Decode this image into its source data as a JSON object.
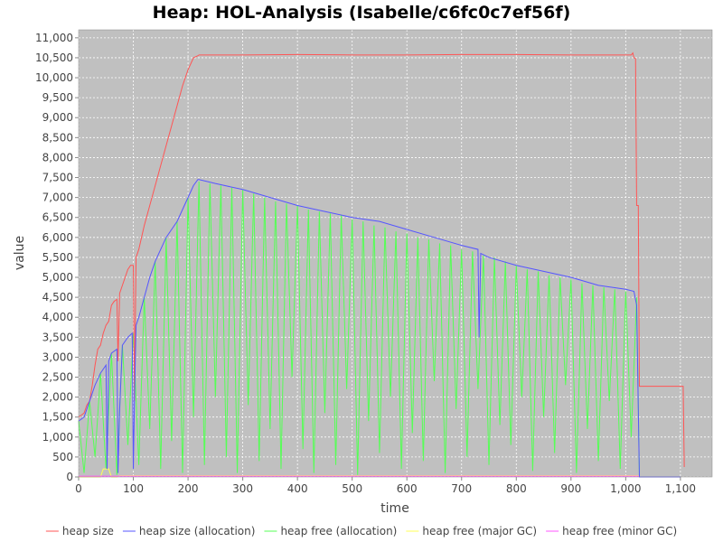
{
  "chart_data": {
    "type": "line",
    "title": "Heap: HOL-Analysis (Isabelle/c6fc0c7ef56f)",
    "x_label": "time",
    "y_label": "value",
    "xlim": [
      0,
      1158
    ],
    "ylim": [
      0,
      11200
    ],
    "xticks": [
      0,
      100,
      200,
      300,
      400,
      500,
      600,
      700,
      800,
      900,
      {
        "value": 1000,
        "label": "1,000"
      },
      {
        "value": 1100,
        "label": "1,100"
      }
    ],
    "yticks": [
      0,
      500,
      {
        "value": 1000,
        "label": "1,000"
      },
      {
        "value": 1500,
        "label": "1,500"
      },
      {
        "value": 2000,
        "label": "2,000"
      },
      {
        "value": 2500,
        "label": "2,500"
      },
      {
        "value": 3000,
        "label": "3,000"
      },
      {
        "value": 3500,
        "label": "3,500"
      },
      {
        "value": 4000,
        "label": "4,000"
      },
      {
        "value": 4500,
        "label": "4,500"
      },
      {
        "value": 5000,
        "label": "5,000"
      },
      {
        "value": 5500,
        "label": "5,500"
      },
      {
        "value": 6000,
        "label": "6,000"
      },
      {
        "value": 6500,
        "label": "6,500"
      },
      {
        "value": 7000,
        "label": "7,000"
      },
      {
        "value": 7500,
        "label": "7,500"
      },
      {
        "value": 8000,
        "label": "8,000"
      },
      {
        "value": 8500,
        "label": "8,500"
      },
      {
        "value": 9000,
        "label": "9,000"
      },
      {
        "value": 9500,
        "label": "9,500"
      },
      {
        "value": 10000,
        "label": "10,000"
      },
      {
        "value": 10500,
        "label": "10,500"
      },
      {
        "value": 11000,
        "label": "11,000"
      }
    ],
    "grid": true,
    "legend": "bottom",
    "series": [
      {
        "name": "heap free (allocation)",
        "color": "#55ff55",
        "x": [
          0,
          10,
          20,
          30,
          40,
          50,
          60,
          70,
          80,
          90,
          100,
          110,
          120,
          130,
          140,
          150,
          160,
          170,
          180,
          190,
          200,
          210,
          220,
          230,
          240,
          250,
          260,
          270,
          280,
          290,
          300,
          310,
          320,
          330,
          340,
          350,
          360,
          370,
          380,
          390,
          400,
          410,
          420,
          430,
          440,
          450,
          460,
          470,
          480,
          490,
          500,
          510,
          520,
          530,
          540,
          550,
          560,
          570,
          580,
          590,
          600,
          610,
          620,
          630,
          640,
          650,
          660,
          670,
          680,
          690,
          700,
          710,
          720,
          730,
          740,
          750,
          760,
          770,
          780,
          790,
          800,
          810,
          820,
          830,
          840,
          850,
          860,
          870,
          880,
          890,
          900,
          910,
          920,
          930,
          940,
          950,
          960,
          970,
          980,
          990,
          1000,
          1010,
          1020,
          1025
        ],
        "values": [
          1400,
          100,
          1900,
          500,
          2600,
          200,
          3100,
          50,
          3300,
          800,
          3600,
          300,
          4500,
          1200,
          5400,
          200,
          6000,
          900,
          6400,
          100,
          7000,
          1500,
          7400,
          300,
          7350,
          2000,
          7300,
          500,
          7250,
          100,
          7200,
          1800,
          7100,
          400,
          7000,
          1200,
          6900,
          200,
          6850,
          2500,
          6800,
          700,
          6700,
          100,
          6650,
          1600,
          6600,
          300,
          6550,
          2200,
          6450,
          50,
          6400,
          1400,
          6300,
          600,
          6250,
          2000,
          6150,
          200,
          6100,
          1100,
          6000,
          400,
          5950,
          2400,
          5850,
          100,
          5800,
          1700,
          5700,
          500,
          5650,
          2200,
          5550,
          300,
          5500,
          1300,
          5400,
          800,
          5300,
          2000,
          5200,
          150,
          5150,
          1500,
          5050,
          600,
          5000,
          2300,
          4950,
          100,
          4850,
          1200,
          4800,
          400,
          4750,
          1900,
          4700,
          200,
          4650,
          1000,
          4500,
          0
        ]
      },
      {
        "name": "heap free (major GC)",
        "color": "#ffff55",
        "x": [
          0,
          40,
          45,
          55,
          60,
          70,
          75,
          1025
        ],
        "values": [
          0,
          0,
          200,
          200,
          0,
          0,
          30,
          30
        ]
      },
      {
        "name": "heap free (minor GC)",
        "color": "#ff55ff",
        "x": [
          0,
          1025
        ],
        "values": [
          20,
          20
        ]
      },
      {
        "name": "heap size",
        "color": "#ff5555",
        "x": [
          0,
          5,
          10,
          15,
          20,
          25,
          30,
          35,
          40,
          45,
          50,
          55,
          60,
          65,
          70,
          72,
          75,
          80,
          85,
          90,
          95,
          100,
          102,
          105,
          110,
          120,
          130,
          140,
          150,
          160,
          170,
          180,
          190,
          200,
          210,
          218,
          220,
          300,
          400,
          500,
          600,
          700,
          800,
          900,
          1010,
          1013,
          1015,
          1018,
          1020,
          1023,
          1025,
          1105,
          1107
        ],
        "values": [
          1500,
          1550,
          1600,
          1800,
          1900,
          2300,
          2800,
          3200,
          3300,
          3600,
          3800,
          3900,
          4300,
          4400,
          4450,
          2900,
          4600,
          4800,
          5000,
          5200,
          5300,
          5300,
          1900,
          5500,
          5700,
          6300,
          6800,
          7300,
          7800,
          8300,
          8800,
          9300,
          9800,
          10200,
          10500,
          10550,
          10570,
          10570,
          10580,
          10570,
          10570,
          10580,
          10580,
          10570,
          10570,
          10620,
          10500,
          10480,
          6800,
          6800,
          2270,
          2270,
          250
        ]
      },
      {
        "name": "heap size (allocation)",
        "color": "#5555ff",
        "x": [
          0,
          10,
          20,
          30,
          40,
          50,
          52,
          55,
          60,
          65,
          70,
          72,
          75,
          80,
          90,
          98,
          100,
          102,
          105,
          110,
          120,
          130,
          140,
          150,
          160,
          170,
          180,
          190,
          200,
          210,
          218,
          220,
          250,
          300,
          350,
          400,
          450,
          500,
          550,
          600,
          650,
          700,
          730,
          732,
          735,
          750,
          800,
          850,
          900,
          950,
          1000,
          1015,
          1020,
          1025,
          1100
        ],
        "values": [
          1400,
          1500,
          1900,
          2300,
          2600,
          2800,
          200,
          2900,
          3100,
          3150,
          3200,
          100,
          1700,
          3300,
          3500,
          3600,
          200,
          1900,
          3800,
          4000,
          4500,
          5000,
          5400,
          5700,
          6000,
          6200,
          6400,
          6700,
          7000,
          7300,
          7450,
          7450,
          7350,
          7200,
          7000,
          6800,
          6650,
          6500,
          6400,
          6200,
          6000,
          5800,
          5700,
          3500,
          5600,
          5500,
          5300,
          5150,
          5000,
          4800,
          4700,
          4650,
          4300,
          0,
          0
        ]
      }
    ],
    "legend_order": [
      3,
      4,
      0,
      1,
      2
    ]
  }
}
